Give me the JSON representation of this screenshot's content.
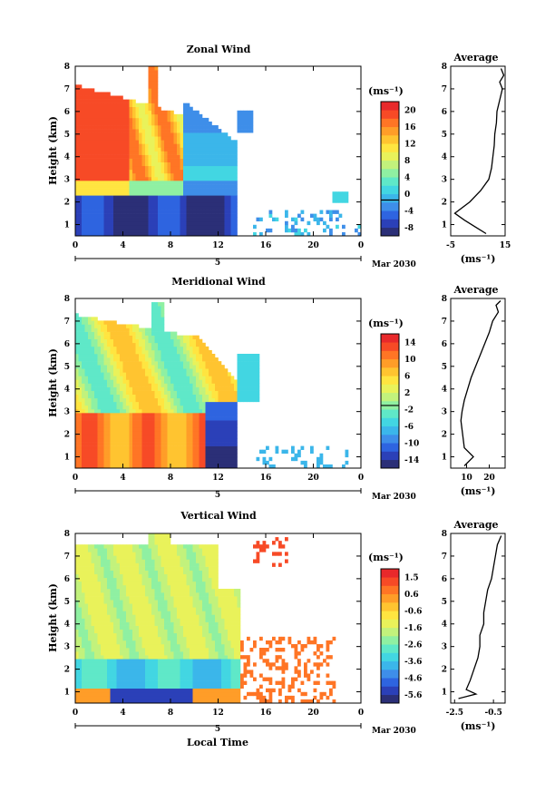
{
  "colors": {
    "palette": [
      "#2b2f77",
      "#2b40b8",
      "#2e64e0",
      "#3e8ee9",
      "#3bb6ea",
      "#42d6e2",
      "#5fe8c8",
      "#8ff0a2",
      "#c2f27c",
      "#e9f25a",
      "#ffe540",
      "#ffc430",
      "#ff9d28",
      "#ff7525",
      "#f74a26",
      "#e8292b"
    ]
  },
  "chart_data": [
    {
      "type": "heatmap",
      "title": "Zonal Wind",
      "ylabel": "Height (km)",
      "ylim": [
        0.5,
        8
      ],
      "yticks": [
        "1",
        "2",
        "3",
        "4",
        "5",
        "6",
        "7",
        "8"
      ],
      "xticks": [
        "0",
        "4",
        "8",
        "12",
        "16",
        "20",
        "0"
      ],
      "xlim": [
        0,
        24
      ],
      "date_label": "Mar 2030",
      "day_label": "5",
      "colorbar": {
        "unit": "(ms⁻¹)",
        "range": [
          -8,
          22
        ],
        "ticks": [
          "20",
          "16",
          "12",
          "8",
          "4",
          "0",
          "-4",
          "-8"
        ],
        "zero_line": 0
      },
      "profile": {
        "title": "Average",
        "xlabel": "(ms⁻¹)",
        "xticks": [
          "-5",
          "15"
        ],
        "xlim": [
          -5,
          15
        ],
        "height": [
          0.6,
          0.9,
          1.2,
          1.5,
          2.0,
          2.5,
          3.0,
          3.5,
          4.0,
          4.5,
          5.0,
          5.5,
          6.0,
          6.5,
          7.0,
          7.3,
          7.6,
          7.9
        ],
        "value": [
          8.0,
          4.0,
          0.0,
          -3.5,
          2.0,
          6.0,
          9.0,
          10.0,
          10.5,
          11.0,
          11.2,
          11.8,
          12.0,
          13.0,
          14.0,
          13.0,
          14.5,
          13.5
        ]
      }
    },
    {
      "type": "heatmap",
      "title": "Meridional Wind",
      "ylabel": "Height (km)",
      "ylim": [
        0.5,
        8
      ],
      "yticks": [
        "1",
        "2",
        "3",
        "4",
        "5",
        "6",
        "7",
        "8"
      ],
      "xticks": [
        "0",
        "4",
        "8",
        "12",
        "16",
        "20",
        "0"
      ],
      "xlim": [
        0,
        24
      ],
      "date_label": "Mar 2030",
      "day_label": "5",
      "colorbar": {
        "unit": "(ms⁻¹)",
        "range": [
          -14,
          16
        ],
        "ticks": [
          "14",
          "10",
          "6",
          "2",
          "-2",
          "-6",
          "-10",
          "-14"
        ],
        "zero_line": 0
      },
      "profile": {
        "title": "Average",
        "xlabel": "(ms⁻¹)",
        "xticks": [
          "10",
          "20"
        ],
        "xlim": [
          3,
          27
        ],
        "height": [
          0.6,
          1.0,
          1.4,
          1.8,
          2.2,
          2.6,
          3.0,
          3.5,
          4.0,
          4.5,
          5.0,
          5.5,
          6.0,
          6.5,
          7.0,
          7.4,
          7.7,
          7.9
        ],
        "value": [
          9.0,
          13.0,
          9.0,
          8.5,
          8.0,
          7.5,
          8.0,
          9.0,
          10.5,
          12.0,
          14.0,
          16.0,
          18.0,
          20.0,
          21.5,
          24.0,
          23.0,
          25.0
        ]
      }
    },
    {
      "type": "heatmap",
      "title": "Vertical Wind",
      "ylabel": "Height (km)",
      "xlabel": "Local Time",
      "ylim": [
        0.5,
        8
      ],
      "yticks": [
        "1",
        "2",
        "3",
        "4",
        "5",
        "6",
        "7",
        "8"
      ],
      "xticks": [
        "0",
        "4",
        "8",
        "12",
        "16",
        "20",
        "0"
      ],
      "xlim": [
        0,
        24
      ],
      "date_label": "Mar 2030",
      "day_label": "5",
      "colorbar": {
        "unit": "(ms⁻¹)",
        "range": [
          -6,
          2
        ],
        "ticks": [
          "1.5",
          "0.6",
          "-0.6",
          "-1.6",
          "-2.6",
          "-3.6",
          "-4.6",
          "-5.6"
        ]
      },
      "profile": {
        "title": "Average",
        "xlabel": "(ms⁻¹)",
        "xticks": [
          "-2.5",
          "-0.5"
        ],
        "xlim": [
          -2.7,
          0.1
        ],
        "height": [
          0.7,
          0.9,
          1.1,
          1.5,
          2.0,
          2.5,
          3.0,
          3.5,
          4.0,
          4.5,
          5.0,
          5.5,
          6.0,
          6.5,
          7.0,
          7.5,
          7.9
        ],
        "value": [
          -2.3,
          -1.4,
          -1.9,
          -1.7,
          -1.5,
          -1.3,
          -1.2,
          -1.2,
          -1.0,
          -1.0,
          -0.9,
          -0.8,
          -0.6,
          -0.5,
          -0.4,
          -0.3,
          -0.1
        ]
      }
    }
  ]
}
